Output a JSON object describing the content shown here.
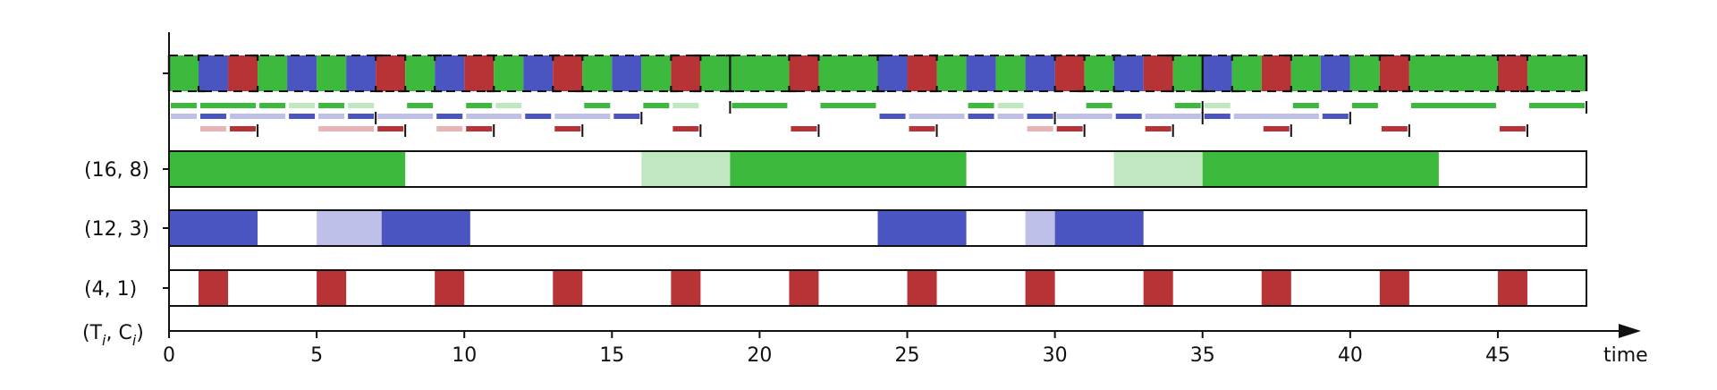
{
  "colors": {
    "green": "#3dba3e",
    "green_light": "#bfe8c0",
    "blue": "#4a55c1",
    "blue_light": "#bfc0e8",
    "red": "#b83336",
    "red_light": "#e8b4b5"
  },
  "axis": {
    "label": "time",
    "xmin": 0,
    "xmax": 48,
    "ticks": [
      0,
      5,
      10,
      15,
      20,
      25,
      30,
      35,
      40,
      45
    ],
    "header_label_main": "(T",
    "header_sub_i": "i",
    "header_mid": ", C",
    "header_sub_i2": "i",
    "header_close": ")"
  },
  "tasks": [
    {
      "label": "(16, 8)",
      "color": "green",
      "segments": [
        {
          "s": 0,
          "e": 8,
          "light": false
        },
        {
          "s": 16,
          "e": 19,
          "light": true
        },
        {
          "s": 19,
          "e": 27,
          "light": false
        },
        {
          "s": 32,
          "e": 35,
          "light": true
        },
        {
          "s": 35,
          "e": 43,
          "light": false
        }
      ]
    },
    {
      "label": "(12, 3)",
      "color": "blue",
      "segments": [
        {
          "s": 0,
          "e": 3,
          "light": false
        },
        {
          "s": 5,
          "e": 7.2,
          "light": true
        },
        {
          "s": 7.2,
          "e": 10.2,
          "light": false
        },
        {
          "s": 24,
          "e": 27,
          "light": false
        },
        {
          "s": 29,
          "e": 30,
          "light": true
        },
        {
          "s": 30,
          "e": 33,
          "light": false
        }
      ]
    },
    {
      "label": "(4, 1)",
      "color": "red",
      "segments": [
        {
          "s": 1,
          "e": 2,
          "light": false
        },
        {
          "s": 5,
          "e": 6,
          "light": false
        },
        {
          "s": 9,
          "e": 10,
          "light": false
        },
        {
          "s": 13,
          "e": 14,
          "light": false
        },
        {
          "s": 17,
          "e": 18,
          "light": false
        },
        {
          "s": 21,
          "e": 22,
          "light": false
        },
        {
          "s": 25,
          "e": 26,
          "light": false
        },
        {
          "s": 29,
          "e": 30,
          "light": false
        },
        {
          "s": 33,
          "e": 34,
          "light": false
        },
        {
          "s": 37,
          "e": 38,
          "light": false
        },
        {
          "s": 41,
          "e": 42,
          "light": false
        },
        {
          "s": 45,
          "e": 46,
          "light": false
        }
      ]
    }
  ],
  "schedule": [
    {
      "s": 0,
      "e": 1,
      "c": "green"
    },
    {
      "s": 1,
      "e": 2,
      "c": "blue"
    },
    {
      "s": 2,
      "e": 3,
      "c": "red"
    },
    {
      "s": 3,
      "e": 4,
      "c": "green"
    },
    {
      "s": 4,
      "e": 5,
      "c": "blue"
    },
    {
      "s": 5,
      "e": 6,
      "c": "green"
    },
    {
      "s": 6,
      "e": 7,
      "c": "blue"
    },
    {
      "s": 7,
      "e": 8,
      "c": "red"
    },
    {
      "s": 8,
      "e": 9,
      "c": "green"
    },
    {
      "s": 9,
      "e": 10,
      "c": "blue"
    },
    {
      "s": 10,
      "e": 11,
      "c": "red"
    },
    {
      "s": 11,
      "e": 12,
      "c": "green"
    },
    {
      "s": 12,
      "e": 13,
      "c": "blue"
    },
    {
      "s": 13,
      "e": 14,
      "c": "red"
    },
    {
      "s": 14,
      "e": 15,
      "c": "green"
    },
    {
      "s": 15,
      "e": 16,
      "c": "blue"
    },
    {
      "s": 16,
      "e": 17,
      "c": "green"
    },
    {
      "s": 17,
      "e": 18,
      "c": "red"
    },
    {
      "s": 18,
      "e": 21,
      "c": "green"
    },
    {
      "s": 21,
      "e": 22,
      "c": "red"
    },
    {
      "s": 22,
      "e": 24,
      "c": "green"
    },
    {
      "s": 24,
      "e": 25,
      "c": "blue"
    },
    {
      "s": 25,
      "e": 26,
      "c": "red"
    },
    {
      "s": 26,
      "e": 27,
      "c": "green"
    },
    {
      "s": 27,
      "e": 28,
      "c": "blue"
    },
    {
      "s": 28,
      "e": 29,
      "c": "green"
    },
    {
      "s": 29,
      "e": 30,
      "c": "blue"
    },
    {
      "s": 30,
      "e": 31,
      "c": "red"
    },
    {
      "s": 31,
      "e": 32,
      "c": "green"
    },
    {
      "s": 32,
      "e": 33,
      "c": "blue"
    },
    {
      "s": 33,
      "e": 34,
      "c": "red"
    },
    {
      "s": 34,
      "e": 35,
      "c": "green"
    },
    {
      "s": 35,
      "e": 36,
      "c": "blue"
    },
    {
      "s": 36,
      "e": 37,
      "c": "green"
    },
    {
      "s": 37,
      "e": 38,
      "c": "red"
    },
    {
      "s": 38,
      "e": 39,
      "c": "green"
    },
    {
      "s": 39,
      "e": 40,
      "c": "blue"
    },
    {
      "s": 40,
      "e": 41,
      "c": "green"
    },
    {
      "s": 41,
      "e": 42,
      "c": "red"
    },
    {
      "s": 42,
      "e": 45,
      "c": "green"
    },
    {
      "s": 45,
      "e": 46,
      "c": "red"
    },
    {
      "s": 46,
      "e": 48,
      "c": "green"
    }
  ],
  "schedule_brackets": [
    [
      1,
      3
    ],
    [
      7,
      8
    ],
    [
      9,
      11
    ],
    [
      13,
      14
    ],
    [
      17,
      18
    ],
    [
      21,
      22
    ],
    [
      24,
      26
    ],
    [
      30,
      31
    ],
    [
      32,
      34
    ],
    [
      36,
      38
    ],
    [
      41,
      42
    ],
    [
      45,
      46
    ]
  ],
  "schedule_separators": [
    19,
    35
  ],
  "indicator_rows": [
    {
      "color": "green",
      "dashes": [
        [
          0,
          1,
          false
        ],
        [
          1,
          3,
          false
        ],
        [
          3,
          4,
          false
        ],
        [
          4,
          5,
          true
        ],
        [
          5,
          6,
          false
        ],
        [
          6,
          7,
          true
        ],
        [
          8,
          9,
          false
        ],
        [
          10,
          11,
          false
        ],
        [
          11,
          12,
          true
        ],
        [
          14,
          15,
          false
        ],
        [
          16,
          17,
          false
        ],
        [
          17,
          18,
          true
        ],
        [
          19,
          21,
          false
        ],
        [
          22,
          24,
          false
        ],
        [
          27,
          28,
          false
        ],
        [
          28,
          29,
          true
        ],
        [
          31,
          32,
          false
        ],
        [
          34,
          35,
          false
        ],
        [
          35,
          36,
          true
        ],
        [
          38,
          39,
          false
        ],
        [
          40,
          41,
          false
        ],
        [
          42,
          45,
          false
        ],
        [
          46,
          48,
          false
        ]
      ],
      "ends": [
        19,
        35,
        48
      ]
    },
    {
      "color": "blue",
      "dashes": [
        [
          0,
          1,
          true
        ],
        [
          1,
          2,
          false
        ],
        [
          2,
          4,
          true
        ],
        [
          4,
          5,
          false
        ],
        [
          5,
          6,
          true
        ],
        [
          6,
          7,
          false
        ],
        [
          7,
          9,
          true
        ],
        [
          9,
          10,
          false
        ],
        [
          10,
          12,
          true
        ],
        [
          12,
          13,
          false
        ],
        [
          13,
          15,
          true
        ],
        [
          15,
          16,
          false
        ],
        [
          24,
          25,
          false
        ],
        [
          25,
          27,
          true
        ],
        [
          27,
          28,
          false
        ],
        [
          28,
          29,
          true
        ],
        [
          29,
          30,
          false
        ],
        [
          30,
          32,
          true
        ],
        [
          32,
          33,
          false
        ],
        [
          33,
          35,
          true
        ],
        [
          35,
          36,
          false
        ],
        [
          36,
          39,
          true
        ],
        [
          39,
          40,
          false
        ]
      ],
      "ends": [
        7,
        16,
        30,
        35,
        40
      ]
    },
    {
      "color": "red",
      "dashes": [
        [
          1,
          2,
          true
        ],
        [
          2,
          3,
          false
        ],
        [
          5,
          7,
          true
        ],
        [
          7,
          8,
          false
        ],
        [
          9,
          10,
          true
        ],
        [
          10,
          11,
          false
        ],
        [
          13,
          14,
          false
        ],
        [
          17,
          18,
          false
        ],
        [
          21,
          22,
          false
        ],
        [
          25,
          26,
          false
        ],
        [
          29,
          30,
          true
        ],
        [
          30,
          31,
          false
        ],
        [
          33,
          34,
          false
        ],
        [
          37,
          38,
          false
        ],
        [
          41,
          42,
          false
        ],
        [
          45,
          46,
          false
        ]
      ],
      "ends": [
        3,
        8,
        11,
        14,
        18,
        22,
        26,
        31,
        34,
        38,
        42,
        46
      ]
    }
  ]
}
